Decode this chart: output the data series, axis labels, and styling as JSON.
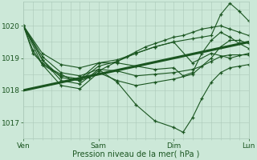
{
  "title": "",
  "xlabel": "Pression niveau de la mer( hPa )",
  "ylabel": "",
  "bg_color": "#cce8d8",
  "plot_bg_color": "#cce8d8",
  "grid_color": "#aac8b8",
  "line_color": "#1a5520",
  "thick_line_color": "#1a5520",
  "marker": "+",
  "marker_size": 3,
  "marker_lw": 0.9,
  "thin_lw": 0.8,
  "thick_lw": 2.2,
  "xlim": [
    0,
    72
  ],
  "ylim": [
    1016.5,
    1020.75
  ],
  "yticks": [
    1017,
    1018,
    1019,
    1020
  ],
  "xtick_positions": [
    0,
    24,
    48,
    72
  ],
  "xtick_labels": [
    "Ven",
    "Sam",
    "Dim",
    "Lun"
  ],
  "series": [
    [
      0,
      1020.0,
      3,
      1019.15,
      6,
      1018.85,
      9,
      1018.65,
      12,
      1018.5,
      15,
      1018.35,
      18,
      1018.3,
      21,
      1018.4,
      24,
      1018.6,
      27,
      1018.75,
      30,
      1018.9,
      33,
      1019.05,
      36,
      1019.2,
      39,
      1019.35,
      42,
      1019.45,
      45,
      1019.55,
      48,
      1019.65,
      51,
      1019.7,
      54,
      1019.8,
      57,
      1019.9,
      60,
      1019.95,
      63,
      1020.0,
      66,
      1019.9,
      69,
      1019.8,
      72,
      1019.7
    ],
    [
      0,
      1020.0,
      6,
      1018.95,
      12,
      1018.4,
      18,
      1018.3,
      24,
      1018.75,
      30,
      1018.9,
      36,
      1019.15,
      42,
      1019.35,
      48,
      1019.5,
      54,
      1018.85,
      60,
      1019.15,
      66,
      1019.0,
      72,
      1019.15
    ],
    [
      0,
      1020.0,
      6,
      1019.05,
      12,
      1018.55,
      18,
      1018.45,
      24,
      1018.65,
      30,
      1018.25,
      36,
      1017.55,
      42,
      1017.05,
      48,
      1016.85,
      51,
      1016.7,
      54,
      1017.15,
      57,
      1017.75,
      60,
      1018.25,
      63,
      1018.55,
      66,
      1018.7,
      69,
      1018.75,
      72,
      1018.8
    ],
    [
      0,
      1020.0,
      6,
      1018.8,
      12,
      1018.15,
      18,
      1018.05,
      24,
      1018.55,
      30,
      1018.3,
      36,
      1018.15,
      42,
      1018.25,
      48,
      1018.35,
      54,
      1018.5,
      60,
      1019.0,
      63,
      1019.35,
      66,
      1019.55,
      69,
      1019.55,
      72,
      1019.45
    ],
    [
      0,
      1020.0,
      6,
      1019.15,
      12,
      1018.8,
      18,
      1018.7,
      24,
      1018.85,
      30,
      1018.95,
      36,
      1019.15,
      42,
      1019.35,
      48,
      1019.5,
      54,
      1019.6,
      57,
      1019.65,
      60,
      1019.7,
      63,
      1020.35,
      66,
      1020.7,
      69,
      1020.45,
      72,
      1020.15
    ],
    [
      0,
      1020.0,
      3,
      1019.25,
      6,
      1018.8,
      12,
      1018.45,
      18,
      1018.35,
      24,
      1018.85,
      30,
      1018.85,
      36,
      1018.75,
      42,
      1018.65,
      48,
      1018.7,
      51,
      1018.45,
      54,
      1018.55,
      57,
      1019.15,
      60,
      1019.55,
      63,
      1019.8,
      66,
      1019.65,
      69,
      1019.45,
      72,
      1019.3
    ],
    [
      0,
      1020.0,
      6,
      1018.95,
      12,
      1018.3,
      18,
      1018.2,
      24,
      1018.65,
      30,
      1018.6,
      36,
      1018.45,
      42,
      1018.5,
      48,
      1018.55,
      54,
      1018.65,
      57,
      1018.75,
      60,
      1018.9,
      63,
      1019.05,
      66,
      1019.1,
      69,
      1019.1,
      72,
      1019.1
    ]
  ],
  "thick_series_x": [
    0,
    72
  ],
  "thick_series_y": [
    1018.0,
    1019.5
  ]
}
